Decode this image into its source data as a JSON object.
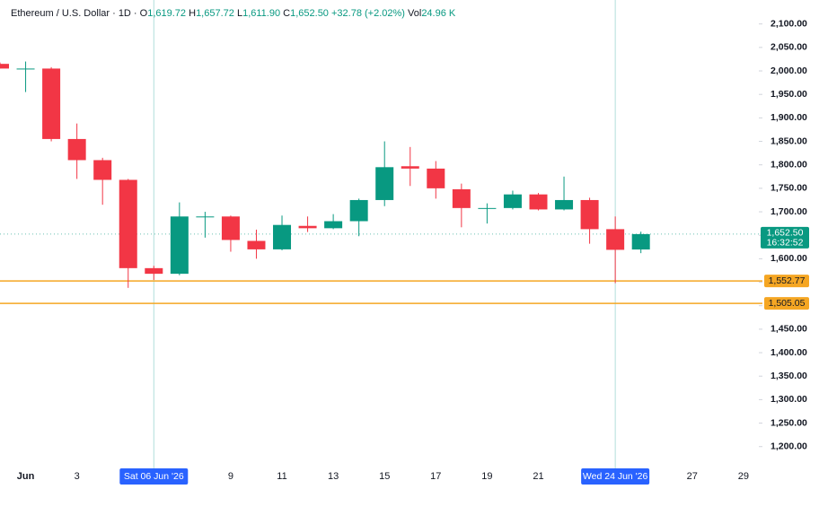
{
  "chart_data": {
    "type": "candlestick",
    "title": "Ethereum / U.S. Dollar · 1D · ",
    "ohlc_legend": [
      {
        "label": "O",
        "value": "1,619.72"
      },
      {
        "label": "H",
        "value": "1,657.72"
      },
      {
        "label": "L",
        "value": "1,611.90"
      },
      {
        "label": "C",
        "value": "1,652.50"
      }
    ],
    "change": "+32.78 (+2.02%)",
    "volume_label": "Vol",
    "volume": "24.96 K",
    "up_color": "#089981",
    "down_color": "#f23645",
    "x": [
      0,
      1,
      2,
      3,
      4,
      5,
      6,
      7,
      8,
      9,
      10,
      11,
      12,
      13,
      14,
      15,
      16,
      17,
      18,
      19,
      20,
      21,
      22,
      23,
      24,
      25
    ],
    "open": [
      2015,
      2005,
      2005,
      1855,
      1810,
      1768,
      1580,
      1568,
      1690,
      1690,
      1638,
      1620,
      1670,
      1665,
      1680,
      1725,
      1797,
      1792,
      1748,
      1708,
      1708,
      1737,
      1705,
      1725,
      1663,
      1619.72
    ],
    "high": [
      2018,
      2020,
      2008,
      1888,
      1815,
      1770,
      1585,
      1720,
      1700,
      1692,
      1662,
      1692,
      1690,
      1695,
      1728,
      1850,
      1838,
      1808,
      1760,
      1718,
      1745,
      1740,
      1775,
      1730,
      1690,
      1657.72
    ],
    "low": [
      2005,
      1955,
      1850,
      1770,
      1715,
      1538,
      1555,
      1565,
      1645,
      1615,
      1600,
      1618,
      1657,
      1663,
      1648,
      1712,
      1755,
      1728,
      1667,
      1675,
      1705,
      1703,
      1703,
      1632,
      1548,
      1611.9
    ],
    "close": [
      2005,
      2005,
      1855,
      1810,
      1768,
      1580,
      1568,
      1690,
      1690,
      1640,
      1620,
      1672,
      1665,
      1680,
      1725,
      1795,
      1792,
      1750,
      1708,
      1708,
      1737,
      1705,
      1725,
      1663,
      1619,
      1652.5
    ],
    "xlim": [
      0,
      29.6
    ],
    "xticks": [
      {
        "value": 1,
        "label": "Jun"
      },
      3,
      9,
      11,
      13,
      15,
      17,
      19,
      21,
      27,
      29
    ],
    "ylim": [
      1167,
      2151
    ],
    "yticks": [
      {
        "value": 1200,
        "label": "1,200.00"
      },
      {
        "value": 1250,
        "label": "1,250.00"
      },
      {
        "value": 1300,
        "label": "1,300.00"
      },
      {
        "value": 1350,
        "label": "1,350.00"
      },
      {
        "value": 1400,
        "label": "1,400.00"
      },
      {
        "value": 1450,
        "label": "1,450.00"
      },
      {
        "value": 1500,
        "label": "1,500.00"
      },
      {
        "value": 1550,
        "label": "1,550.00"
      },
      {
        "value": 1600,
        "label": "1,600.00"
      },
      {
        "value": 1650,
        "label": "1,650.00"
      },
      {
        "value": 1700,
        "label": "1,700.00"
      },
      {
        "value": 1750,
        "label": "1,750.00"
      },
      {
        "value": 1800,
        "label": "1,800.00"
      },
      {
        "value": 1850,
        "label": "1,850.00"
      },
      {
        "value": 1900,
        "label": "1,900.00"
      },
      {
        "value": 1950,
        "label": "1,950.00"
      },
      {
        "value": 2000,
        "label": "2,000.00"
      },
      {
        "value": 2050,
        "label": "2,050.00"
      },
      {
        "value": 2100,
        "label": "2,100.00"
      }
    ],
    "crosshairs": [
      {
        "x": 6,
        "label": "Sat 06 Jun '26"
      },
      {
        "x": 24,
        "label": "Wed 24 Jun '26"
      }
    ],
    "hlines": [
      {
        "value": 1552.77,
        "label": "1,552.77",
        "color": "#f5a623"
      },
      {
        "value": 1505.05,
        "label": "1,505.05",
        "color": "#f5a623"
      }
    ],
    "price_line": {
      "value": 1652.5,
      "label": "1,652.50",
      "countdown": "16:32:52",
      "color": "#089981"
    }
  }
}
